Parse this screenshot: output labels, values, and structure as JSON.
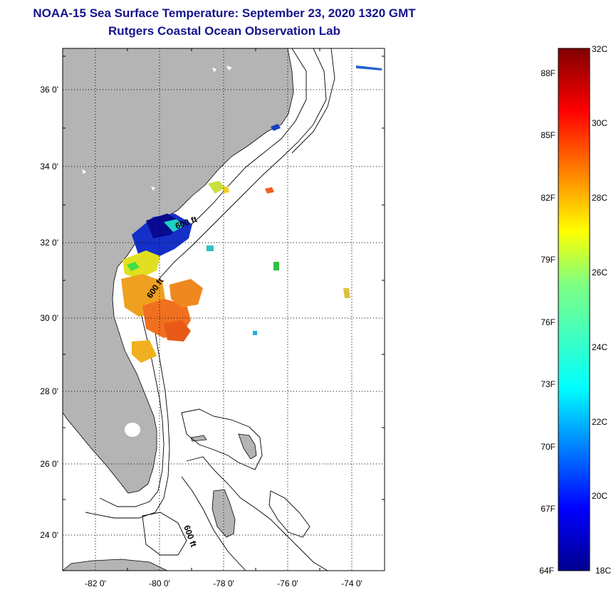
{
  "header": {
    "title": "NOAA-15 Sea Surface Temperature:  September 23, 2020 1320 GMT",
    "subtitle": "Rutgers Coastal Ocean Observation Lab"
  },
  "map": {
    "lon_ticks": [
      "-82 0'",
      "-80 0'",
      "-78 0'",
      "-76 0'",
      "-74 0'"
    ],
    "lat_ticks": [
      "36 0'",
      "34 0'",
      "32 0'",
      "30 0'",
      "28 0'",
      "26 0'",
      "24 0'"
    ],
    "contour_labels": [
      "600 ft",
      "600 ft",
      "600 ft"
    ],
    "colors": {
      "land": "#b4b4b4",
      "water": "#ffffff",
      "frame": "#000000"
    }
  },
  "colorbar": {
    "celsius_labels": [
      "32C",
      "30C",
      "28C",
      "26C",
      "24C",
      "22C",
      "20C",
      "18C"
    ],
    "fahrenheit_labels": [
      "88F",
      "85F",
      "82F",
      "79F",
      "76F",
      "73F",
      "70F",
      "67F",
      "64F"
    ],
    "min_c": 18,
    "max_c": 32
  }
}
